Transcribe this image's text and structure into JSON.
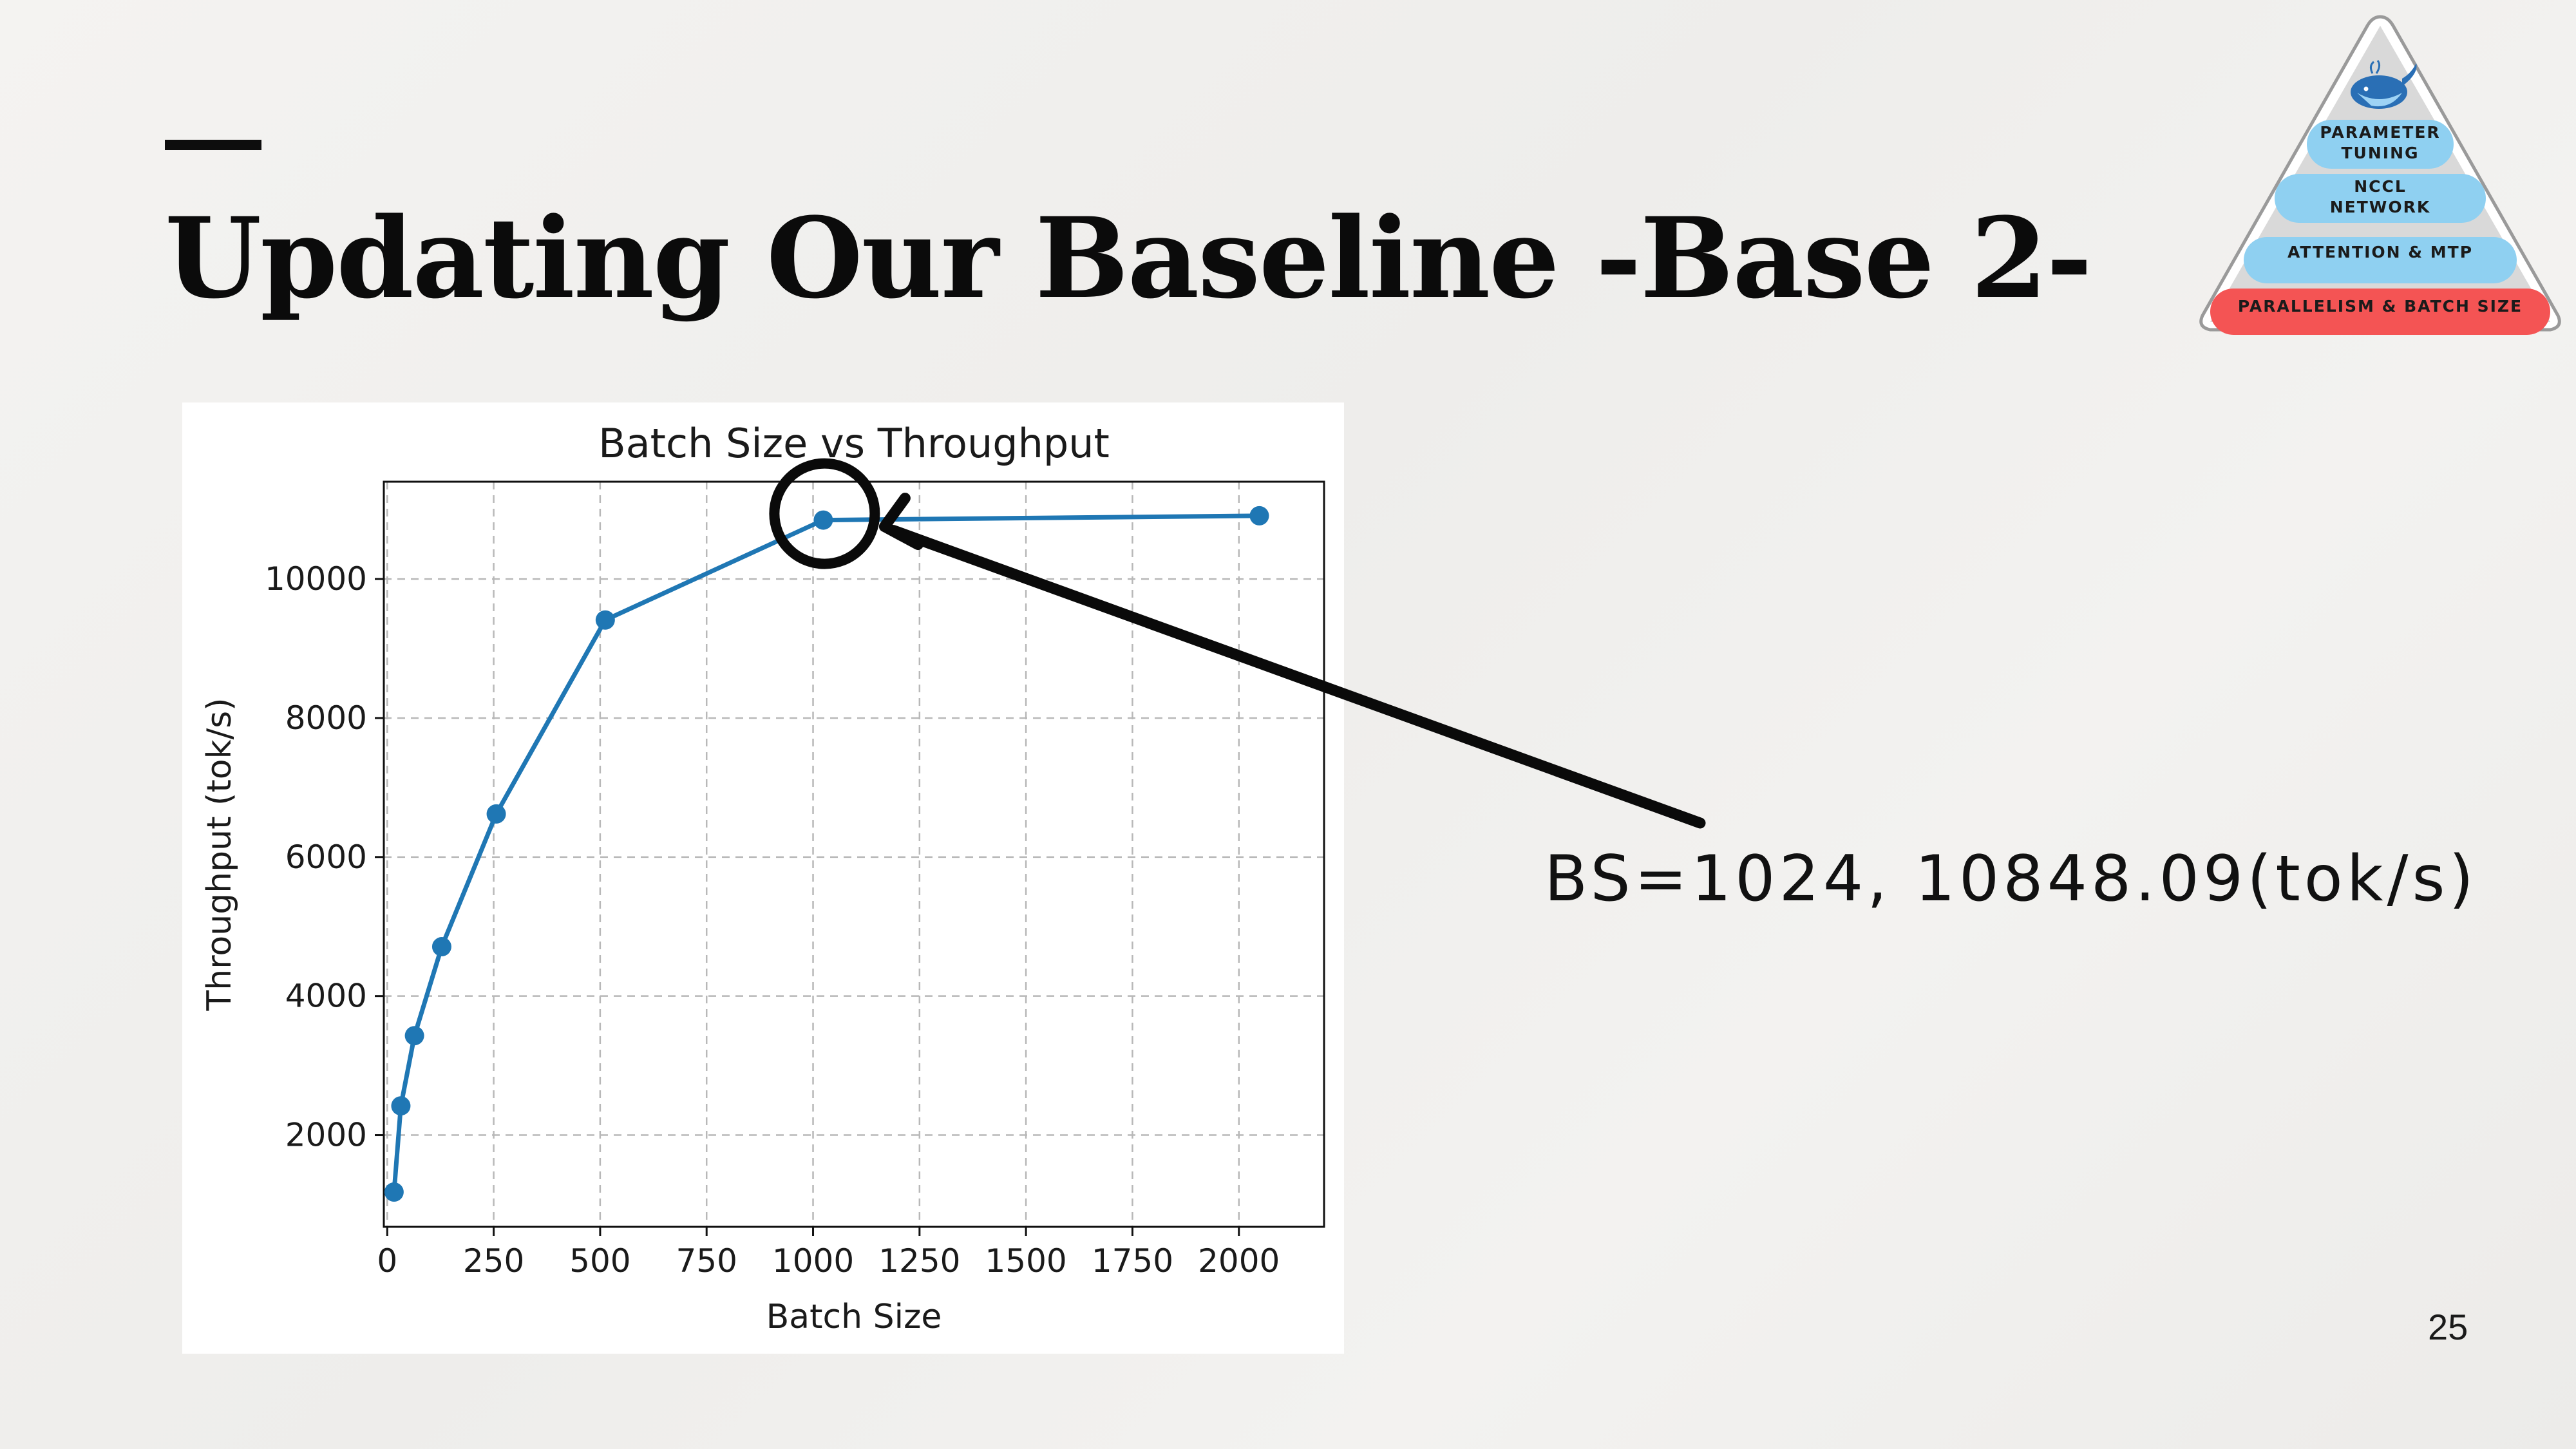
{
  "slide": {
    "title": "Updating Our Baseline -Base 2-",
    "page_number": "25"
  },
  "callout": {
    "text": "BS=1024, 10848.09(tok/s)"
  },
  "pyramid": {
    "mascot_icon": "whale-icon",
    "levels": [
      {
        "label": "PARAMETER TUNING",
        "color": "#8fd0f1"
      },
      {
        "label": "NCCL NETWORK",
        "color": "#8fd0f1"
      },
      {
        "label": "ATTENTION & MTP",
        "color": "#8fd0f1"
      },
      {
        "label": "PARALLELISM & BATCH SIZE",
        "color": "#f45454"
      }
    ]
  },
  "chart_data": {
    "type": "line",
    "title": "Batch Size vs Throughput",
    "xlabel": "Batch Size",
    "ylabel": "Throughput (tok/s)",
    "xlim": [
      -8,
      2200
    ],
    "ylim": [
      680,
      11400
    ],
    "xticks": [
      0,
      250,
      500,
      750,
      1000,
      1250,
      1500,
      1750,
      2000
    ],
    "yticks": [
      2000,
      4000,
      6000,
      8000,
      10000
    ],
    "grid": true,
    "line_color": "#1f77b4",
    "series": [
      {
        "x": [
          16,
          32,
          64,
          128,
          256,
          512,
          1024,
          2048
        ],
        "y": [
          1180,
          2420,
          3430,
          4710,
          6620,
          9410,
          10848.09,
          10910
        ]
      }
    ],
    "highlight": {
      "x": 1024,
      "y": 10848.09
    }
  }
}
